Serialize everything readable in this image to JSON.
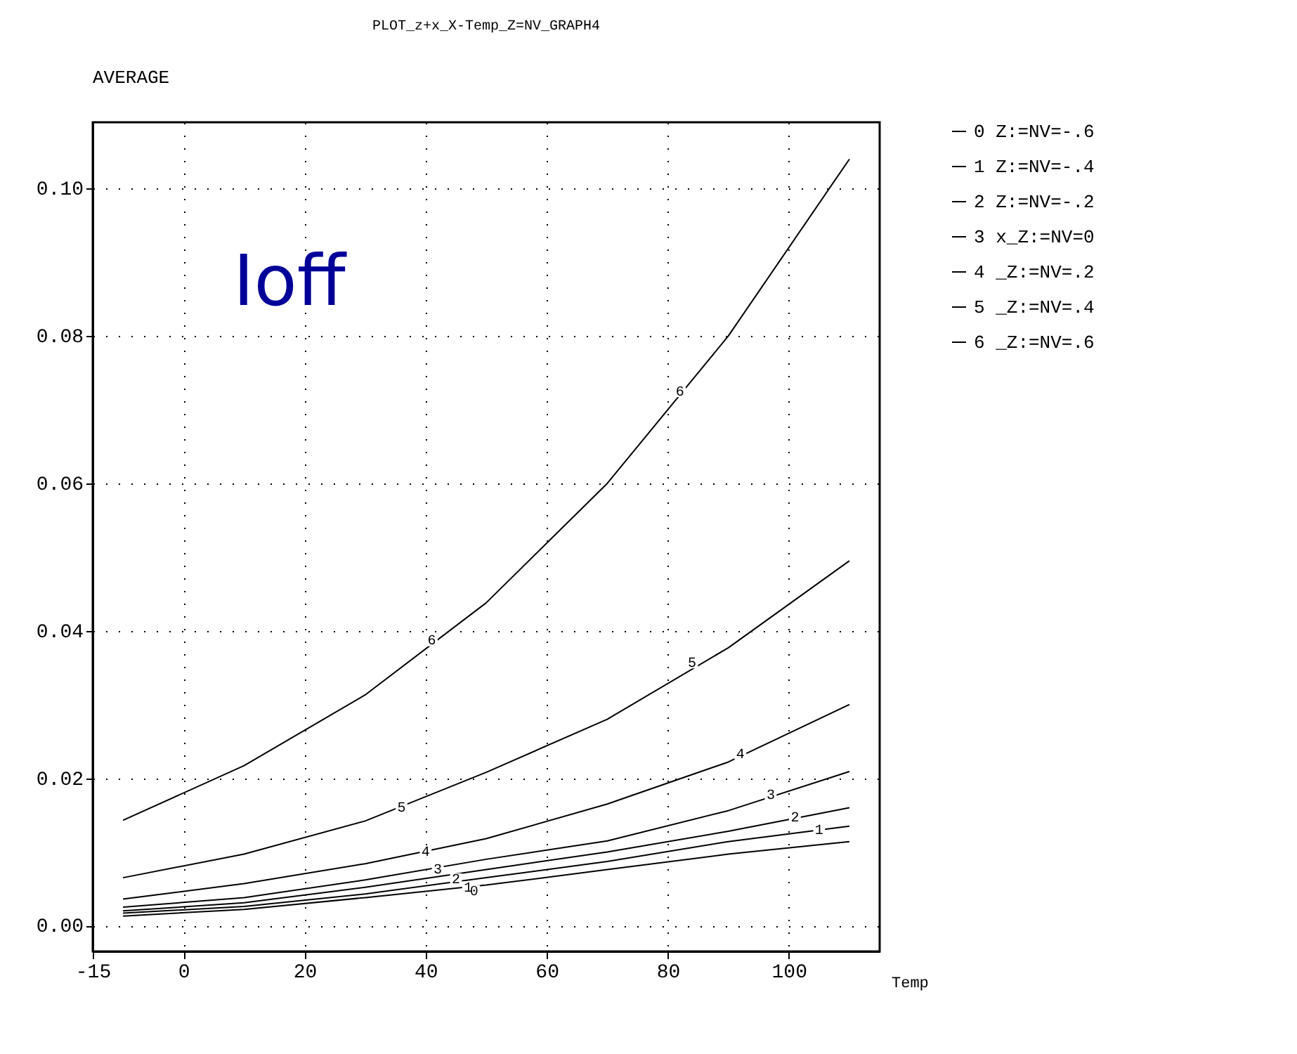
{
  "chart_data": {
    "type": "line",
    "title": "PLOT_z+x_X-Temp_Z=NV_GRAPH4",
    "xlabel": "Temp",
    "x": [
      -10,
      10,
      30,
      50,
      70,
      90,
      110
    ],
    "series": [
      {
        "name": "0 Z:=NV=-.6",
        "color": "#000000",
        "values": [
          0.0013,
          0.0022,
          0.0038,
          0.0055,
          0.0076,
          0.0097,
          0.0114
        ]
      },
      {
        "name": "1 Z:=NV=-.4",
        "color": "#000000",
        "values": [
          0.0017,
          0.0026,
          0.0043,
          0.0065,
          0.0087,
          0.0114,
          0.0135
        ]
      },
      {
        "name": "2 Z:=NV=-.2",
        "color": "#000000",
        "values": [
          0.002,
          0.0031,
          0.0052,
          0.0076,
          0.01,
          0.0128,
          0.016
        ]
      },
      {
        "name": "3 x_Z:=NV=0",
        "color": "#000000",
        "values": [
          0.0025,
          0.0038,
          0.0062,
          0.009,
          0.0115,
          0.0156,
          0.0209
        ]
      },
      {
        "name": "4 _Z:=NV=.2",
        "color": "#000000",
        "values": [
          0.0036,
          0.0057,
          0.0084,
          0.0118,
          0.0165,
          0.0222,
          0.03
        ]
      },
      {
        "name": "5 _Z:=NV=.4",
        "color": "#000000",
        "values": [
          0.0065,
          0.0097,
          0.0142,
          0.0208,
          0.028,
          0.0377,
          0.0495
        ]
      },
      {
        "name": "6 _Z:=NV=.6",
        "color": "#000000",
        "values": [
          0.0143,
          0.0217,
          0.0313,
          0.0438,
          0.06,
          0.08,
          0.104
        ]
      }
    ],
    "xlim": [
      -15,
      115
    ],
    "xticks": [
      -15,
      0,
      20,
      40,
      60,
      80,
      100
    ],
    "ylim": [
      -0.0035,
      0.109
    ],
    "yticks": [
      {
        "value": 0,
        "label": "0.00"
      },
      {
        "value": 0.02,
        "label": "0.02"
      },
      {
        "value": 0.04,
        "label": "0.04"
      },
      {
        "value": 0.06,
        "label": "0.06"
      },
      {
        "value": 0.08,
        "label": "0.08"
      },
      {
        "value": 0.1,
        "label": "0.10"
      }
    ],
    "grid": true,
    "legend": "right",
    "annotations": [
      "AVERAGE",
      "Ioff",
      {
        "text": "6",
        "x": 41,
        "y": 0.0387
      },
      {
        "text": "6",
        "x": 82,
        "y": 0.0725
      },
      {
        "text": "5",
        "x": 36,
        "y": 0.016
      },
      {
        "text": "5",
        "x": 84,
        "y": 0.0357
      },
      {
        "text": "4",
        "x": 40,
        "y": 0.01
      },
      {
        "text": "4",
        "x": 92,
        "y": 0.0233
      },
      {
        "text": "3",
        "x": 42,
        "y": 0.0077
      },
      {
        "text": "3",
        "x": 97,
        "y": 0.0178
      },
      {
        "text": "2",
        "x": 45,
        "y": 0.0063
      },
      {
        "text": "2",
        "x": 101,
        "y": 0.0147
      },
      {
        "text": "1",
        "x": 47,
        "y": 0.0052
      },
      {
        "text": "1",
        "x": 105,
        "y": 0.013
      },
      {
        "text": "0",
        "x": 48,
        "y": 0.0047
      }
    ]
  }
}
